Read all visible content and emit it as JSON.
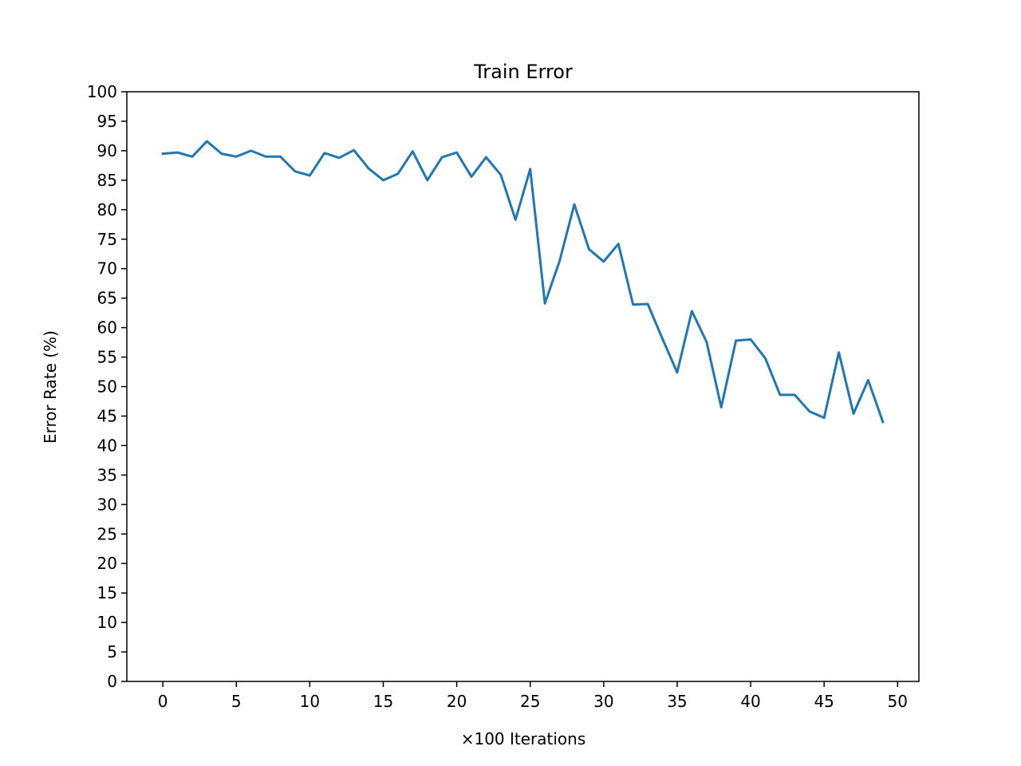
{
  "chart_data": {
    "type": "line",
    "title": "Train Error",
    "xlabel": "×100 Iterations",
    "ylabel": "Error Rate (%)",
    "xlim": [
      -2.45,
      51.45
    ],
    "ylim": [
      0,
      100
    ],
    "xticks": [
      0,
      5,
      10,
      15,
      20,
      25,
      30,
      35,
      40,
      45,
      50
    ],
    "yticks": [
      0,
      5,
      10,
      15,
      20,
      25,
      30,
      35,
      40,
      45,
      50,
      55,
      60,
      65,
      70,
      75,
      80,
      85,
      90,
      95,
      100
    ],
    "grid": false,
    "legend": "none",
    "series": [
      {
        "color": "#1f77b4",
        "x": [
          0,
          1,
          2,
          3,
          4,
          5,
          6,
          7,
          8,
          9,
          10,
          11,
          12,
          13,
          14,
          15,
          16,
          17,
          18,
          19,
          20,
          21,
          22,
          23,
          24,
          25,
          26,
          27,
          28,
          29,
          30,
          31,
          32,
          33,
          34,
          35,
          36,
          37,
          38,
          39,
          40,
          41,
          42,
          43,
          44,
          45,
          46,
          47,
          48,
          49
        ],
        "values": [
          89.5,
          89.7,
          89.0,
          91.6,
          89.5,
          89.0,
          90.0,
          89.0,
          89.0,
          86.5,
          85.8,
          89.6,
          88.8,
          90.1,
          87.0,
          85.0,
          86.1,
          89.9,
          85.0,
          88.9,
          89.7,
          85.6,
          88.9,
          85.9,
          78.3,
          86.9,
          64.1,
          71.3,
          80.9,
          73.3,
          71.2,
          74.2,
          63.9,
          64.0,
          58.1,
          52.4,
          62.8,
          57.6,
          46.5,
          57.8,
          58.0,
          54.8,
          48.6,
          48.6,
          45.8,
          44.7,
          55.8,
          45.4,
          51.1,
          44.0
        ]
      }
    ]
  }
}
